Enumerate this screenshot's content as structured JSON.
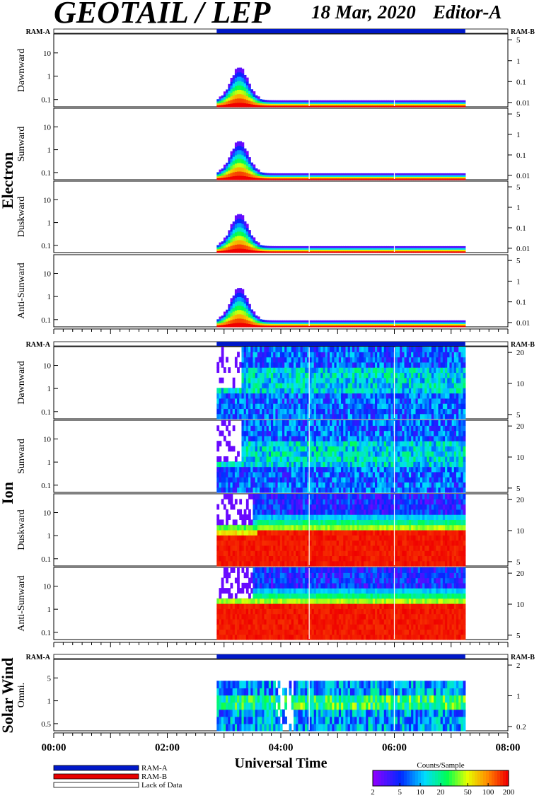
{
  "header": {
    "title": "GEOTAIL / LEP",
    "date": "18 Mar, 2020",
    "editor": "Editor-A"
  },
  "colors": {
    "ram_a": "#0018c8",
    "ram_b": "#e80000",
    "lack_of_data": "#ffffff"
  },
  "chart_data": {
    "type": "heatmap",
    "xlabel": "Universal Time",
    "x_ticks": [
      "00:00",
      "02:00",
      "04:00",
      "06:00",
      "08:00"
    ],
    "x_range_hours": [
      0,
      8
    ],
    "data_interval_hours": [
      2.87,
      7.25
    ],
    "ram_a_label": "RAM-A",
    "ram_b_label": "RAM-B",
    "groups": [
      {
        "name": "Electron",
        "panels": [
          {
            "label": "Dawnward",
            "left_ticks": [
              "10",
              "1",
              "0.1"
            ],
            "right_ticks": [
              "5",
              "1",
              "0.1",
              "0.01"
            ]
          },
          {
            "label": "Sunward",
            "left_ticks": [
              "10",
              "1",
              "0.1"
            ],
            "right_ticks": [
              "5",
              "1",
              "0.1",
              "0.01"
            ]
          },
          {
            "label": "Duskward",
            "left_ticks": [
              "10",
              "1",
              "0.1"
            ],
            "right_ticks": [
              "5",
              "1",
              "0.1",
              "0.01"
            ]
          },
          {
            "label": "Anti-Sunward",
            "left_ticks": [
              "10",
              "1",
              "0.1"
            ],
            "right_ticks": [
              "5",
              "1",
              "0.1",
              "0.01"
            ]
          }
        ]
      },
      {
        "name": "Ion",
        "panels": [
          {
            "label": "Dawnward",
            "left_ticks": [
              "10",
              "1",
              "0.1"
            ],
            "right_ticks": [
              "20",
              "10",
              "5"
            ]
          },
          {
            "label": "Sunward",
            "left_ticks": [
              "10",
              "1",
              "0.1"
            ],
            "right_ticks": [
              "20",
              "10",
              "5"
            ]
          },
          {
            "label": "Duskward",
            "left_ticks": [
              "10",
              "1",
              "0.1"
            ],
            "right_ticks": [
              "20",
              "10",
              "5"
            ]
          },
          {
            "label": "Anti-Sunward",
            "left_ticks": [
              "10",
              "1",
              "0.1"
            ],
            "right_ticks": [
              "20",
              "10",
              "5"
            ]
          }
        ]
      },
      {
        "name": "Solar Wind",
        "panels": [
          {
            "label": "Omni.",
            "left_ticks": [
              "5",
              "1",
              "0.5"
            ],
            "right_ticks": [
              "2",
              "1",
              "0.2"
            ]
          }
        ]
      }
    ],
    "legend": {
      "entries": [
        "RAM-A",
        "RAM-B",
        "Lack of Data"
      ]
    },
    "colorbar": {
      "title": "Counts/Sample",
      "ticks": [
        "2",
        "5",
        "10",
        "20",
        "50",
        "100",
        "200"
      ],
      "range": [
        2,
        200
      ],
      "scale": "log"
    }
  }
}
